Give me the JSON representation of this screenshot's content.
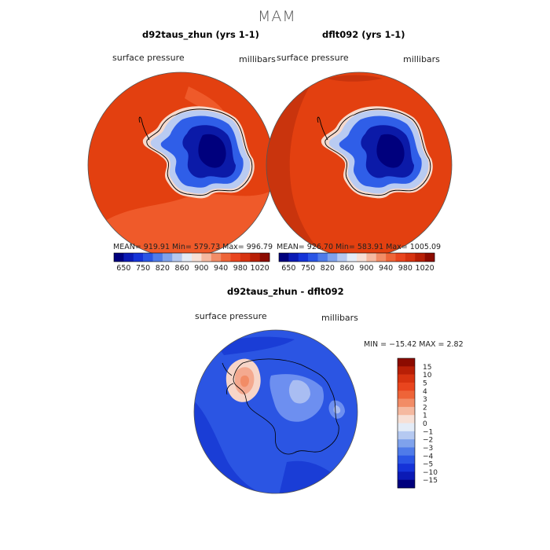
{
  "figure": {
    "title": "MAM"
  },
  "panels": [
    {
      "title": "d92taus_zhun (yrs 1-1)",
      "variable": "surface pressure",
      "units": "millibars",
      "stats": {
        "mean": "919.91",
        "min": "579.73",
        "max": "996.79"
      },
      "stats_text": "MEAN= 919.91   Min= 579.73   Max= 996.79"
    },
    {
      "title": "dflt092 (yrs 1-1)",
      "variable": "surface pressure",
      "units": "millibars",
      "stats": {
        "mean": "926.70",
        "min": "583.91",
        "max": "1005.09"
      },
      "stats_text": "MEAN= 926.70   Min= 583.91   Max= 1005.09"
    },
    {
      "title": "d92taus_zhun - dflt092",
      "variable": "surface pressure",
      "units": "millibars",
      "stats": {
        "min": "-15.42",
        "max": "2.82"
      },
      "stats_text": "MIN = −15.42  MAX =    2.82"
    }
  ],
  "colorbar_top": {
    "labels": [
      "650",
      "750",
      "820",
      "860",
      "900",
      "940",
      "980",
      "1020"
    ],
    "colors": [
      "#00007d",
      "#0b1ab5",
      "#1533d8",
      "#2a55e5",
      "#4f7be9",
      "#7fa2ec",
      "#b5c9f1",
      "#e4ecf7",
      "#f7e0d6",
      "#f5b9a0",
      "#f28c66",
      "#ee6438",
      "#e9451e",
      "#d73310",
      "#b81f06",
      "#8c0b00"
    ]
  },
  "colorbar_diff": {
    "labels": [
      "15",
      "10",
      "5",
      "4",
      "3",
      "2",
      "1",
      "0",
      "−1",
      "−2",
      "−3",
      "−4",
      "−5",
      "−10",
      "−15"
    ],
    "colors": [
      "#8c0b00",
      "#b81f06",
      "#d73310",
      "#e9451e",
      "#ee6438",
      "#f28c66",
      "#f5b9a0",
      "#f7e0d6",
      "#e4ecf7",
      "#b5c9f1",
      "#7fa2ec",
      "#4f7be9",
      "#2a55e5",
      "#1533d8",
      "#0b1ab5",
      "#00007d"
    ]
  },
  "map_colors": {
    "ocean_high": "#e34010",
    "ocean_mid": "#ef5a2a",
    "ocean_dark": "#c9340d",
    "coast_light": "#f6d9cc",
    "ice_edge": "#b9cbf2",
    "interior_mid": "#2f5ee8",
    "interior_deep": "#0b1aa8",
    "interior_core": "#00007d",
    "diff_base": "#2b55e3",
    "diff_dark": "#1a3dd6",
    "diff_light": "#6d8ff0",
    "diff_pale": "#a9bdf2",
    "diff_warm": "#f4a98f",
    "diff_warm_light": "#f7d5c8"
  }
}
